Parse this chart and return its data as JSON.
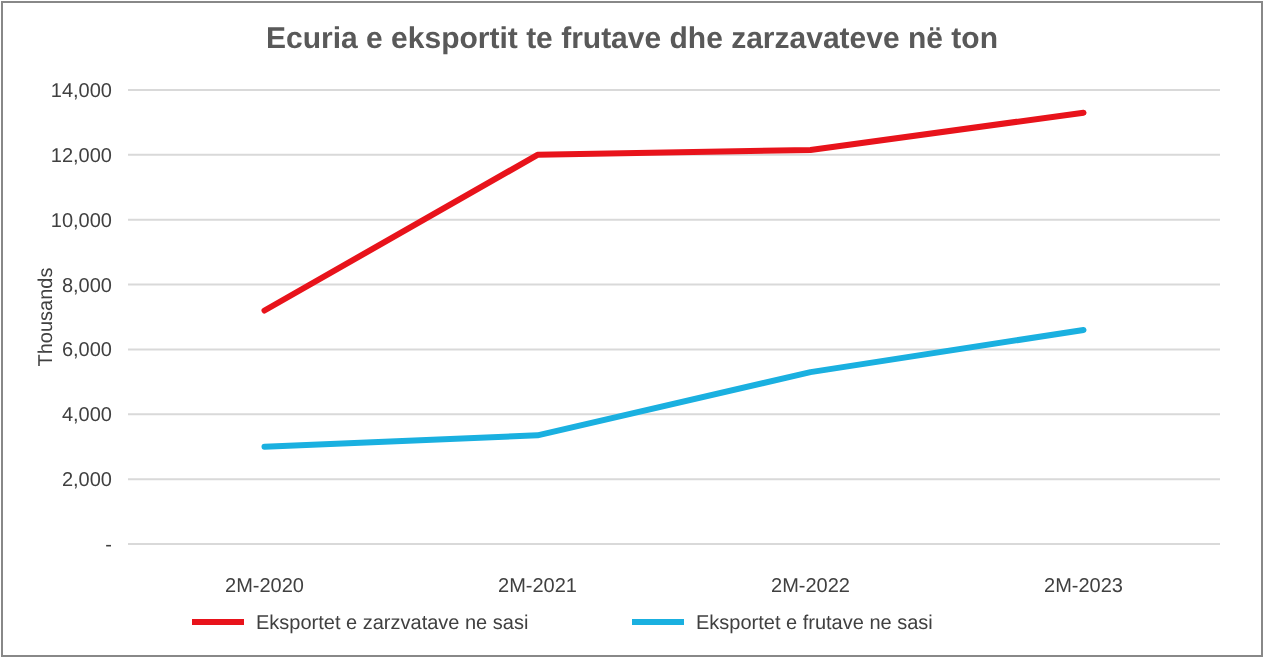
{
  "chart_data": {
    "type": "line",
    "title": "Ecuria e eksportit te frutave dhe zarzavateve në ton",
    "ylabel": "Thousands",
    "categories": [
      "2M-2020",
      "2M-2021",
      "2M-2022",
      "2M-2023"
    ],
    "series": [
      {
        "name": "Eksportet e zarzvatave ne sasi",
        "color": "#e8131b",
        "values": [
          7200,
          12000,
          12150,
          13300
        ]
      },
      {
        "name": "Eksportet e frutave ne sasi",
        "color": "#1ab0e0",
        "values": [
          3000,
          3350,
          5300,
          6600
        ]
      }
    ],
    "ylim": [
      0,
      14000
    ],
    "yticks": [
      {
        "value": 0,
        "label": "-"
      },
      {
        "value": 2000,
        "label": "2,000"
      },
      {
        "value": 4000,
        "label": "4,000"
      },
      {
        "value": 6000,
        "label": "6,000"
      },
      {
        "value": 8000,
        "label": "8,000"
      },
      {
        "value": 10000,
        "label": "10,000"
      },
      {
        "value": 12000,
        "label": "12,000"
      },
      {
        "value": 14000,
        "label": "14,000"
      }
    ],
    "grid": "y",
    "legend": "bottom",
    "marker": "none",
    "line_style": "solid"
  }
}
